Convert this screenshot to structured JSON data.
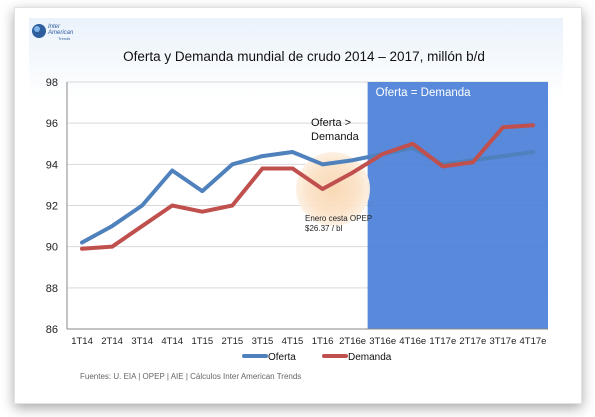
{
  "logo": {
    "line1": "Inter",
    "line2": "American",
    "line3": "Trends"
  },
  "chart_data": {
    "type": "line",
    "title": "Oferta y Demanda mundial de crudo 2014 – 2017, millón b/d",
    "categories": [
      "1T14",
      "2T14",
      "3T14",
      "4T14",
      "1T15",
      "2T15",
      "3T15",
      "4T15",
      "1T16",
      "2T16e",
      "3T16e",
      "4T16e",
      "1T17e",
      "2T17e",
      "3T17e",
      "4T17e"
    ],
    "ylim": [
      86,
      98
    ],
    "yticks": [
      86,
      88,
      90,
      92,
      94,
      96,
      98
    ],
    "series": [
      {
        "name": "Oferta",
        "color": "#4f81bd",
        "values": [
          90.2,
          91.0,
          92.0,
          93.7,
          92.7,
          94.0,
          94.4,
          94.6,
          94.0,
          94.2,
          94.5,
          94.8,
          94.0,
          94.2,
          94.4,
          94.6
        ]
      },
      {
        "name": "Demanda",
        "color": "#c0504d",
        "values": [
          89.9,
          90.0,
          91.0,
          92.0,
          91.7,
          92.0,
          93.8,
          93.8,
          92.8,
          93.6,
          94.5,
          95.0,
          93.9,
          94.1,
          95.8,
          95.9
        ]
      }
    ],
    "highlight": {
      "label": "Oferta = Demanda",
      "from": "3T16e",
      "to": "4T17e",
      "color": "#4a7fd8"
    },
    "annotations": [
      {
        "text1": "Oferta >",
        "text2": "Demanda"
      },
      {
        "text1": "Enero  cesta OPEP",
        "text2": "$26.37 / bl"
      }
    ],
    "legend_position": "bottom",
    "source": "Fuentes: U. EIA | OPEP | AIE | Cálculos Inter American Trends"
  }
}
